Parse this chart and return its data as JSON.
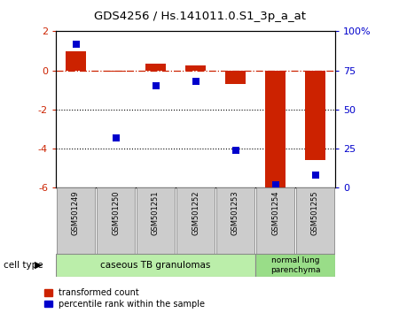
{
  "title": "GDS4256 / Hs.141011.0.S1_3p_a_at",
  "samples": [
    "GSM501249",
    "GSM501250",
    "GSM501251",
    "GSM501252",
    "GSM501253",
    "GSM501254",
    "GSM501255"
  ],
  "transformed_count": [
    1.0,
    -0.05,
    0.35,
    0.25,
    -0.7,
    -6.1,
    -4.6
  ],
  "percentile_rank": [
    92,
    32,
    65,
    68,
    24,
    2,
    8
  ],
  "bar_color": "#cc2200",
  "dot_color": "#0000cc",
  "left_ylim": [
    -6,
    2
  ],
  "left_yticks": [
    -6,
    -4,
    -2,
    0,
    2
  ],
  "right_ylim": [
    0,
    100
  ],
  "right_yticks": [
    0,
    25,
    50,
    75,
    100
  ],
  "right_yticklabels": [
    "0",
    "25",
    "50",
    "75",
    "100%"
  ],
  "dotted_lines": [
    -2,
    -4
  ],
  "group1_label": "caseous TB granulomas",
  "group1_count": 5,
  "group2_label": "normal lung\nparenchyma",
  "group2_count": 2,
  "group1_color": "#bbeeaa",
  "group2_color": "#99dd88",
  "cell_type_label": "cell type",
  "legend_red": "transformed count",
  "legend_blue": "percentile rank within the sample",
  "bar_width": 0.5,
  "dot_size": 35
}
